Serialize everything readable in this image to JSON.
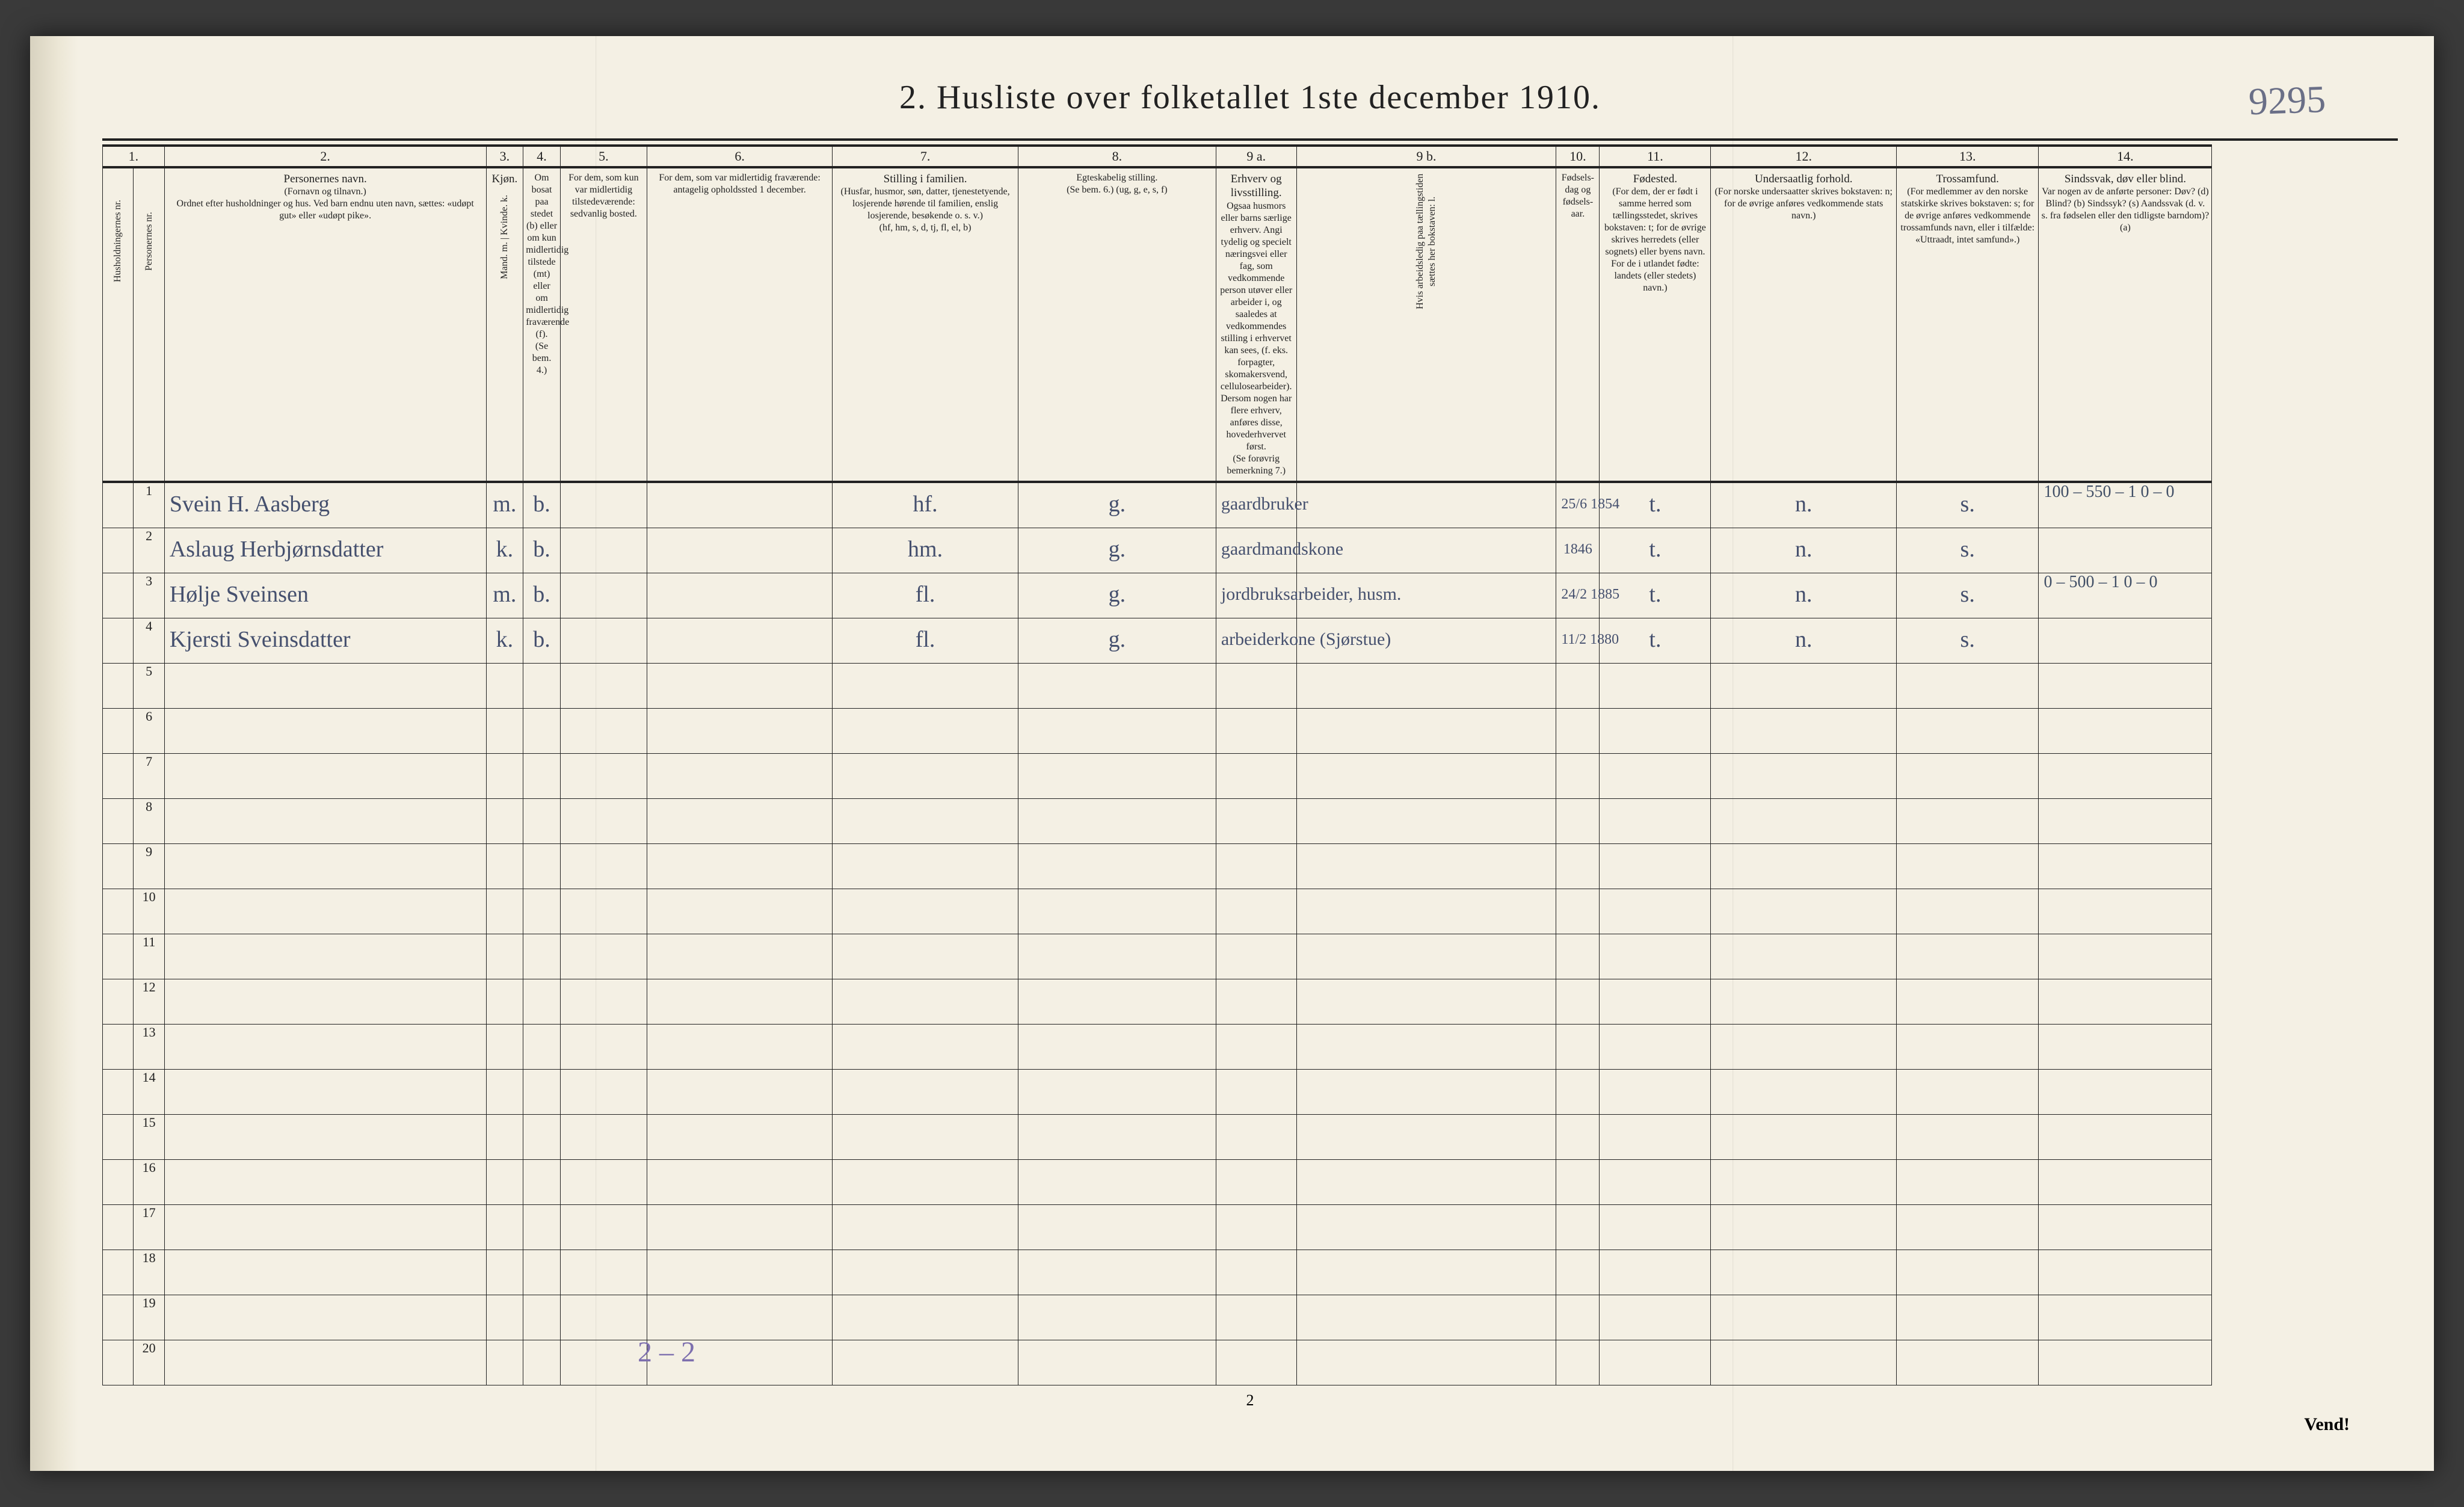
{
  "title": "2.  Husliste over folketallet 1ste december 1910.",
  "page_number_handwritten": "9295",
  "footer_page_number": "2",
  "vend": "Vend!",
  "tally": "2 – 2",
  "col_numbers": [
    "1.",
    "2.",
    "3.",
    "4.",
    "5.",
    "6.",
    "7.",
    "8.",
    "9 a.",
    "9 b.",
    "10.",
    "11.",
    "12.",
    "13.",
    "14."
  ],
  "headers": {
    "c1": "Husholdningernes nr.",
    "c2": "Personernes nr.",
    "c3_top": "Personernes navn.",
    "c3_mid": "(Fornavn og tilnavn.)",
    "c3_bot": "Ordnet efter husholdninger og hus. Ved barn endnu uten navn, sættes: «udøpt gut» eller «udøpt pike».",
    "c4": "Kjøn.",
    "c4_sub": "Mand. m. | Kvinde. k.",
    "c5_top": "Om bosat paa stedet (b) eller om kun midlertidig tilstede (mt) eller om midlertidig fraværende (f).",
    "c5_bot": "(Se bem. 4.)",
    "c6_top": "For dem, som kun var midlertidig tilstedeværende:",
    "c6_bot": "sedvanlig bosted.",
    "c7_top": "For dem, som var midlertidig fraværende:",
    "c7_bot": "antagelig opholdssted 1 december.",
    "c8_top": "Stilling i familien.",
    "c8_mid": "(Husfar, husmor, søn, datter, tjenestetyende, losjerende hørende til familien, enslig losjerende, besøkende o. s. v.)",
    "c8_bot": "(hf, hm, s, d, tj, fl, el, b)",
    "c9_top": "Egteskabelig stilling.",
    "c9_bot": "(Se bem. 6.) (ug, g, e, s, f)",
    "c10_top": "Erhverv og livsstilling.",
    "c10_body": "Ogsaa husmors eller barns særlige erhverv. Angi tydelig og specielt næringsvei eller fag, som vedkommende person utøver eller arbeider i, og saaledes at vedkommendes stilling i erhvervet kan sees, (f. eks. forpagter, skomakersvend, cellulosearbeider). Dersom nogen har flere erhverv, anføres disse, hovederhvervet først.",
    "c10_bot": "(Se forøvrig bemerkning 7.)",
    "c11": "Hvis arbeidsledig paa tællingstiden sættes her bokstaven: l.",
    "c12_top": "Fødsels-dag og fødsels-aar.",
    "c13_top": "Fødested.",
    "c13_body": "(For dem, der er født i samme herred som tællingsstedet, skrives bokstaven: t; for de øvrige skrives herredets (eller sognets) eller byens navn. For de i utlandet fødte: landets (eller stedets) navn.)",
    "c14_top": "Undersaatlig forhold.",
    "c14_body": "(For norske undersaatter skrives bokstaven: n; for de øvrige anføres vedkommende stats navn.)",
    "c15_top": "Trossamfund.",
    "c15_body": "(For medlemmer av den norske statskirke skrives bokstaven: s; for de øvrige anføres vedkommende trossamfunds navn, eller i tilfælde: «Uttraadt, intet samfund».)",
    "c16_top": "Sindssvak, døv eller blind.",
    "c16_body": "Var nogen av de anførte personer: Døv? (d) Blind? (b) Sindssyk? (s) Aandssvak (d. v. s. fra fødselen eller den tidligste barndom)? (a)"
  },
  "rows": [
    {
      "n": "1",
      "name": "Svein H. Aasberg",
      "sex": "m.",
      "res": "b.",
      "fam": "hf.",
      "mar": "g.",
      "occ": "gaardbruker",
      "dob": "25/6 1854",
      "birthplace": "t.",
      "nat": "n.",
      "rel": "s.",
      "note": "100 – 550 – 1\n0  –  0"
    },
    {
      "n": "2",
      "name": "Aslaug Herbjørnsdatter",
      "sex": "k.",
      "res": "b.",
      "fam": "hm.",
      "mar": "g.",
      "occ": "gaardmandskone",
      "dob": "1846",
      "birthplace": "t.",
      "nat": "n.",
      "rel": "s.",
      "note": ""
    },
    {
      "n": "3",
      "name": "Hølje Sveinsen",
      "sex": "m.",
      "res": "b.",
      "fam": "fl.",
      "mar": "g.",
      "occ": "jordbruksarbeider, husm.",
      "dob": "24/2 1885",
      "birthplace": "t.",
      "nat": "n.",
      "rel": "s.",
      "note": "0 – 500 – 1\n0  –  0"
    },
    {
      "n": "4",
      "name": "Kjersti Sveinsdatter",
      "sex": "k.",
      "res": "b.",
      "fam": "fl.",
      "mar": "g.",
      "occ": "arbeiderkone (Sjørstue)",
      "dob": "11/2 1880",
      "birthplace": "t.",
      "nat": "n.",
      "rel": "s.",
      "note": ""
    },
    {
      "n": "5"
    },
    {
      "n": "6"
    },
    {
      "n": "7"
    },
    {
      "n": "8"
    },
    {
      "n": "9"
    },
    {
      "n": "10"
    },
    {
      "n": "11"
    },
    {
      "n": "12"
    },
    {
      "n": "13"
    },
    {
      "n": "14"
    },
    {
      "n": "15"
    },
    {
      "n": "16"
    },
    {
      "n": "17"
    },
    {
      "n": "18"
    },
    {
      "n": "19"
    },
    {
      "n": "20"
    }
  ]
}
